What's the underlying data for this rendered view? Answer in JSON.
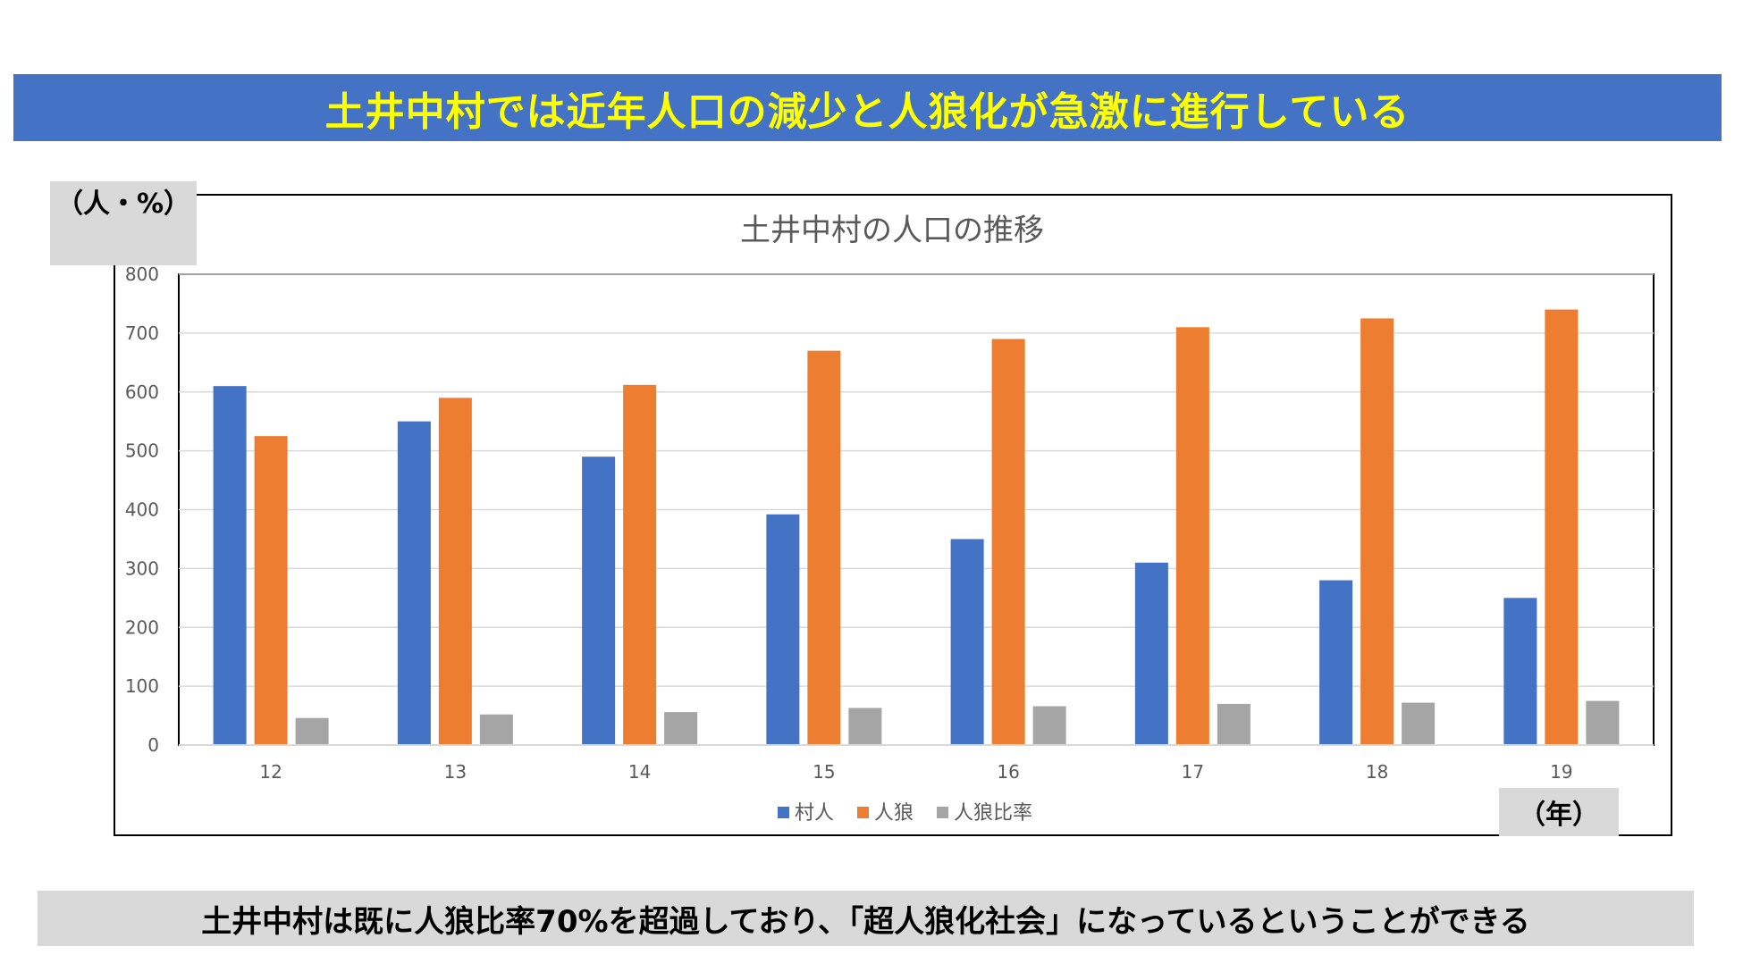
{
  "header": {
    "title": "土井中村では近年人口の減少と人狼化が急激に進行している"
  },
  "unit_label": "（人・%）",
  "year_label": "（年）",
  "footer": {
    "text": "土井中村は既に人狼比率70%を超過しており、「超人狼化社会」になっているということができる"
  },
  "colors": {
    "header_bg": "#4472c4",
    "header_text": "#ffff00",
    "villager": "#4472c4",
    "werewolf": "#ed7d31",
    "ratio": "#a5a5a5",
    "badge_bg": "#d9d9d9"
  },
  "chart_data": {
    "type": "bar",
    "title": "土井中村の人口の推移",
    "categories": [
      "12",
      "13",
      "14",
      "15",
      "16",
      "17",
      "18",
      "19"
    ],
    "series": [
      {
        "name": "村人",
        "values": [
          610,
          550,
          490,
          392,
          350,
          310,
          280,
          250
        ]
      },
      {
        "name": "人狼",
        "values": [
          525,
          590,
          612,
          670,
          690,
          710,
          725,
          740
        ]
      },
      {
        "name": "人狼比率",
        "values": [
          46,
          52,
          56,
          63,
          66,
          70,
          72,
          75
        ]
      }
    ],
    "ylim": [
      0,
      800
    ],
    "yticks": [
      0,
      100,
      200,
      300,
      400,
      500,
      600,
      700,
      800
    ],
    "xlabel": "（年）",
    "ylabel": "（人・%）",
    "grid": true,
    "legend": "bottom"
  }
}
